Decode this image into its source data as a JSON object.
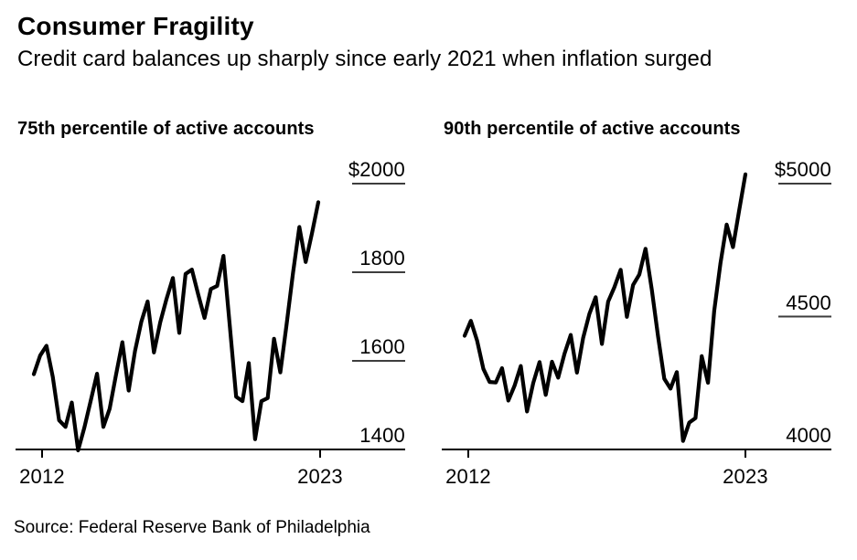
{
  "header": {
    "title": "Consumer Fragility",
    "subtitle": "Credit card balances up sharply since early 2021 when inflation surged"
  },
  "source_note": "Source: Federal Reserve Bank of Philadelphia",
  "colors": {
    "background": "#ffffff",
    "line": "#000000",
    "axis": "#000000",
    "tick_underline": "#3d3d3d",
    "text": "#000000"
  },
  "chart_data": [
    {
      "type": "line",
      "title": "75th percentile of active accounts",
      "unit": "USD",
      "ylim": [
        1400,
        2000
      ],
      "y_tick_values": [
        2000,
        1800,
        1600,
        1400
      ],
      "y_tick_labels": [
        "$2000",
        "1800",
        "1600",
        "1400"
      ],
      "x_tick_labels": [
        "2012",
        "2023"
      ],
      "grid": "short right-side underline ticks, y-axis labels on right",
      "legend": "none",
      "x": [
        "2012Q1",
        "2012Q2",
        "2012Q3",
        "2012Q4",
        "2013Q1",
        "2013Q2",
        "2013Q3",
        "2013Q4",
        "2014Q1",
        "2014Q2",
        "2014Q3",
        "2014Q4",
        "2015Q1",
        "2015Q2",
        "2015Q3",
        "2015Q4",
        "2016Q1",
        "2016Q2",
        "2016Q3",
        "2016Q4",
        "2017Q1",
        "2017Q2",
        "2017Q3",
        "2017Q4",
        "2018Q1",
        "2018Q2",
        "2018Q3",
        "2018Q4",
        "2019Q1",
        "2019Q2",
        "2019Q3",
        "2019Q4",
        "2020Q1",
        "2020Q2",
        "2020Q3",
        "2020Q4",
        "2021Q1",
        "2021Q2",
        "2021Q3",
        "2021Q4",
        "2022Q1",
        "2022Q2",
        "2022Q3",
        "2022Q4",
        "2023Q1",
        "2023Q2"
      ],
      "values": [
        1570,
        1612,
        1634,
        1564,
        1466,
        1451,
        1506,
        1398,
        1450,
        1510,
        1571,
        1451,
        1492,
        1568,
        1642,
        1533,
        1622,
        1688,
        1734,
        1619,
        1687,
        1740,
        1787,
        1663,
        1796,
        1806,
        1750,
        1697,
        1762,
        1769,
        1837,
        1680,
        1519,
        1509,
        1595,
        1423,
        1509,
        1516,
        1650,
        1574,
        1683,
        1799,
        1902,
        1823,
        1888,
        1958
      ]
    },
    {
      "type": "line",
      "title": "90th percentile of active accounts",
      "unit": "USD",
      "ylim": [
        4000,
        5000
      ],
      "y_tick_values": [
        5000,
        4500,
        4000
      ],
      "y_tick_labels": [
        "$5000",
        "4500",
        "4000"
      ],
      "x_tick_labels": [
        "2012",
        "2023"
      ],
      "grid": "short right-side underline ticks, y-axis labels on right",
      "legend": "none",
      "x": [
        "2012Q1",
        "2012Q2",
        "2012Q3",
        "2012Q4",
        "2013Q1",
        "2013Q2",
        "2013Q3",
        "2013Q4",
        "2014Q1",
        "2014Q2",
        "2014Q3",
        "2014Q4",
        "2015Q1",
        "2015Q2",
        "2015Q3",
        "2015Q4",
        "2016Q1",
        "2016Q2",
        "2016Q3",
        "2016Q4",
        "2017Q1",
        "2017Q2",
        "2017Q3",
        "2017Q4",
        "2018Q1",
        "2018Q2",
        "2018Q3",
        "2018Q4",
        "2019Q1",
        "2019Q2",
        "2019Q3",
        "2019Q4",
        "2020Q1",
        "2020Q2",
        "2020Q3",
        "2020Q4",
        "2021Q1",
        "2021Q2",
        "2021Q3",
        "2021Q4",
        "2022Q1",
        "2022Q2",
        "2022Q3",
        "2022Q4",
        "2023Q1",
        "2023Q2"
      ],
      "values": [
        4428,
        4484,
        4410,
        4303,
        4254,
        4252,
        4306,
        4184,
        4240,
        4314,
        4143,
        4250,
        4329,
        4205,
        4330,
        4270,
        4360,
        4431,
        4289,
        4420,
        4510,
        4573,
        4397,
        4556,
        4610,
        4676,
        4499,
        4619,
        4658,
        4755,
        4600,
        4425,
        4266,
        4229,
        4291,
        4032,
        4101,
        4118,
        4351,
        4251,
        4522,
        4700,
        4846,
        4761,
        4900,
        5035
      ]
    }
  ]
}
